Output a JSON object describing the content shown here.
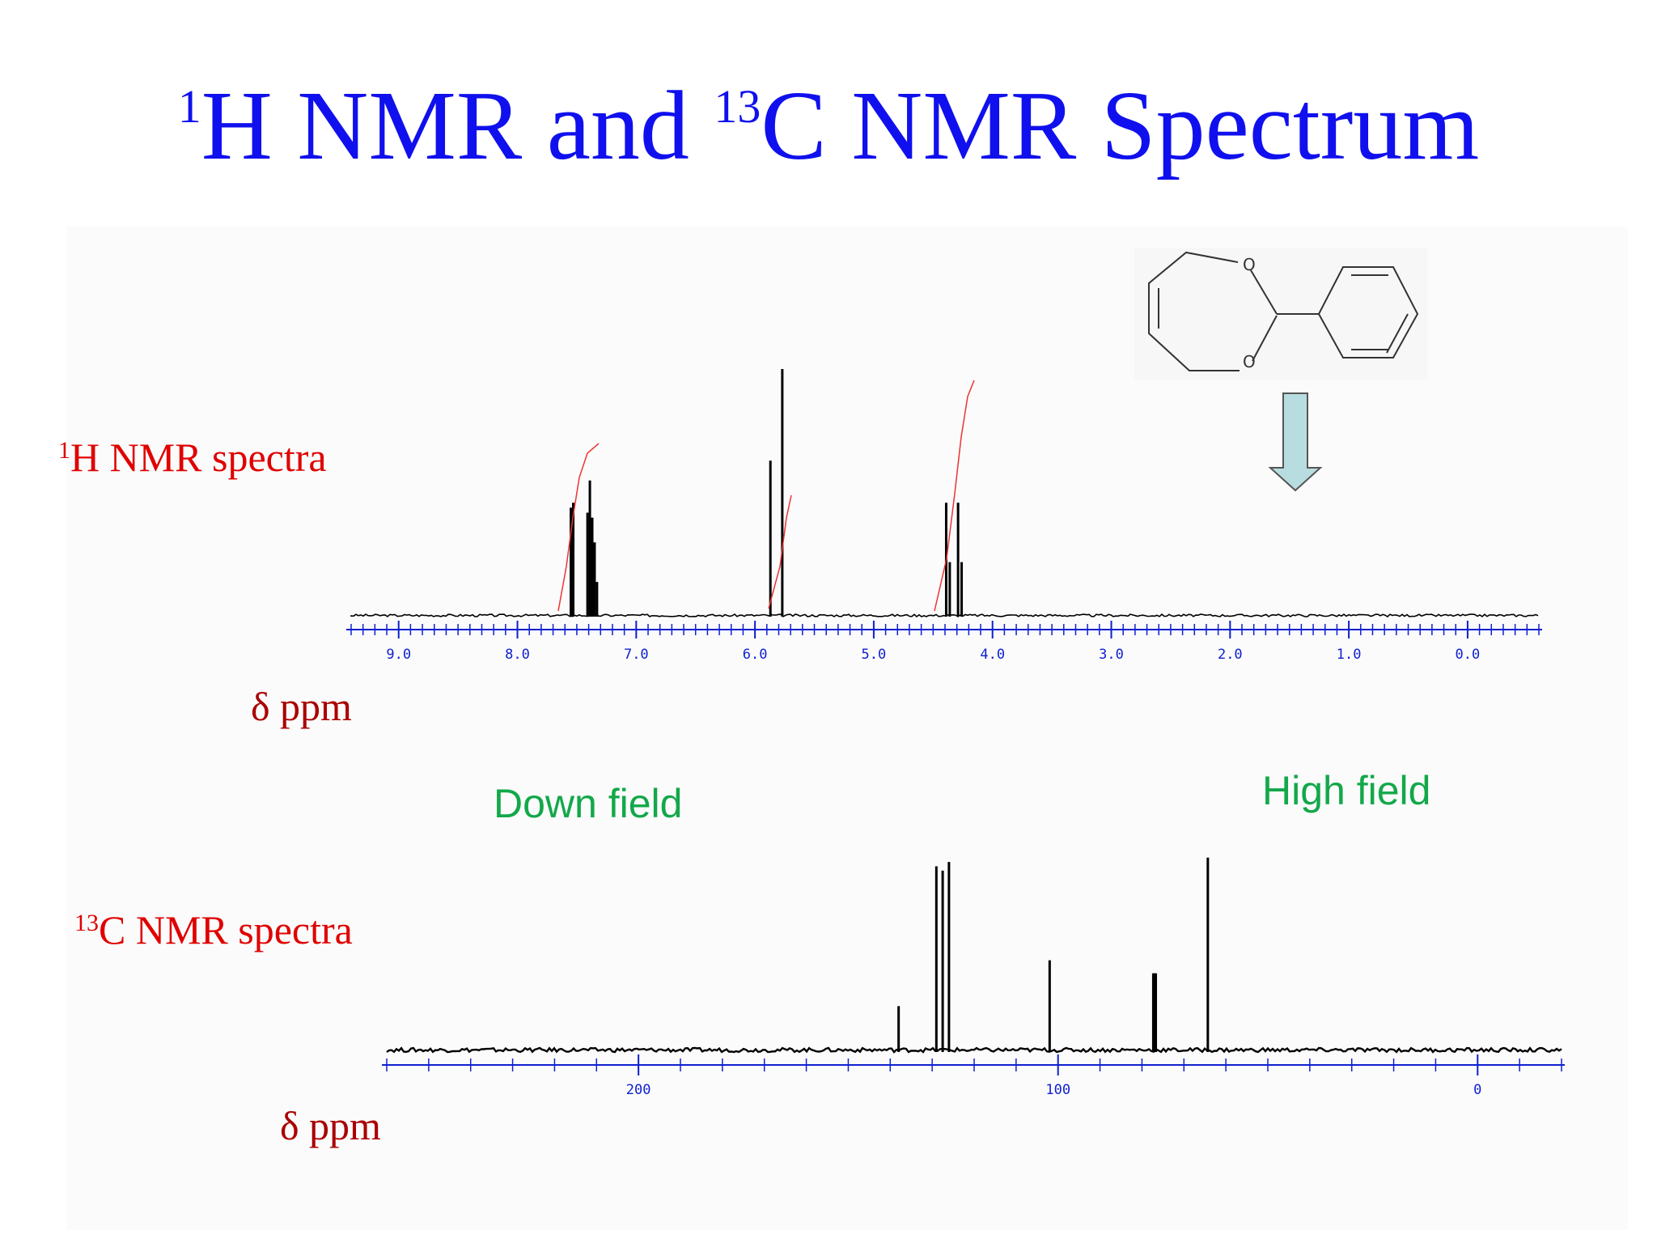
{
  "title": {
    "sup1": "1",
    "part1": "H NMR and ",
    "sup2": "13",
    "part2": "C NMR Spectrum"
  },
  "labels": {
    "h_label": {
      "sup": "1",
      "text": "H NMR spectra"
    },
    "c_label": {
      "sup": "13",
      "text": "C NMR spectra"
    },
    "h_axis": "δ ppm",
    "c_axis": "δ ppm",
    "down_field": "Down field",
    "high_field": "High field"
  },
  "colors": {
    "title": "#1010ee",
    "label": "#e00000",
    "axis_label": "#aa0000",
    "annotation": "#13a84a",
    "axis": "#1020d0",
    "spectrum": "#000000",
    "integral": "#ee3333",
    "arrow": "#b8dde0"
  },
  "icons": {
    "structure": "molecule-structure-icon",
    "arrow": "down-arrow-icon"
  },
  "chart_data": [
    {
      "type": "line",
      "title": "",
      "xlabel": "δ ppm",
      "xlim": [
        9.4,
        -0.6
      ],
      "x_reversed": true,
      "tick_labels": [
        "9.0",
        "8.0",
        "7.0",
        "6.0",
        "5.0",
        "4.0",
        "3.0",
        "2.0",
        "1.0",
        "0.0"
      ],
      "tick_values": [
        9,
        8,
        7,
        6,
        5,
        4,
        3,
        2,
        1,
        0
      ],
      "peaks": [
        {
          "x": 7.55,
          "h": 0.44
        },
        {
          "x": 7.53,
          "h": 0.46
        },
        {
          "x": 7.41,
          "h": 0.42
        },
        {
          "x": 7.39,
          "h": 0.55
        },
        {
          "x": 7.37,
          "h": 0.4
        },
        {
          "x": 7.35,
          "h": 0.3
        },
        {
          "x": 7.33,
          "h": 0.14
        },
        {
          "x": 5.87,
          "h": 0.63
        },
        {
          "x": 5.77,
          "h": 1.0
        },
        {
          "x": 4.39,
          "h": 0.46
        },
        {
          "x": 4.36,
          "h": 0.22
        },
        {
          "x": 4.29,
          "h": 0.46
        },
        {
          "x": 4.26,
          "h": 0.22
        }
      ]
    },
    {
      "type": "line",
      "title": "",
      "xlabel": "δ ppm",
      "xlim": [
        260,
        -20
      ],
      "x_reversed": true,
      "tick_labels": [
        "200",
        "100",
        "0"
      ],
      "tick_values": [
        200,
        100,
        0
      ],
      "peaks": [
        {
          "x": 138,
          "h": 0.21
        },
        {
          "x": 129,
          "h": 0.85
        },
        {
          "x": 127.5,
          "h": 0.83
        },
        {
          "x": 126,
          "h": 0.87
        },
        {
          "x": 102,
          "h": 0.42
        },
        {
          "x": 77.3,
          "h": 0.36
        },
        {
          "x": 77.0,
          "h": 0.36
        },
        {
          "x": 76.7,
          "h": 0.36
        },
        {
          "x": 64.3,
          "h": 0.89
        }
      ]
    }
  ]
}
